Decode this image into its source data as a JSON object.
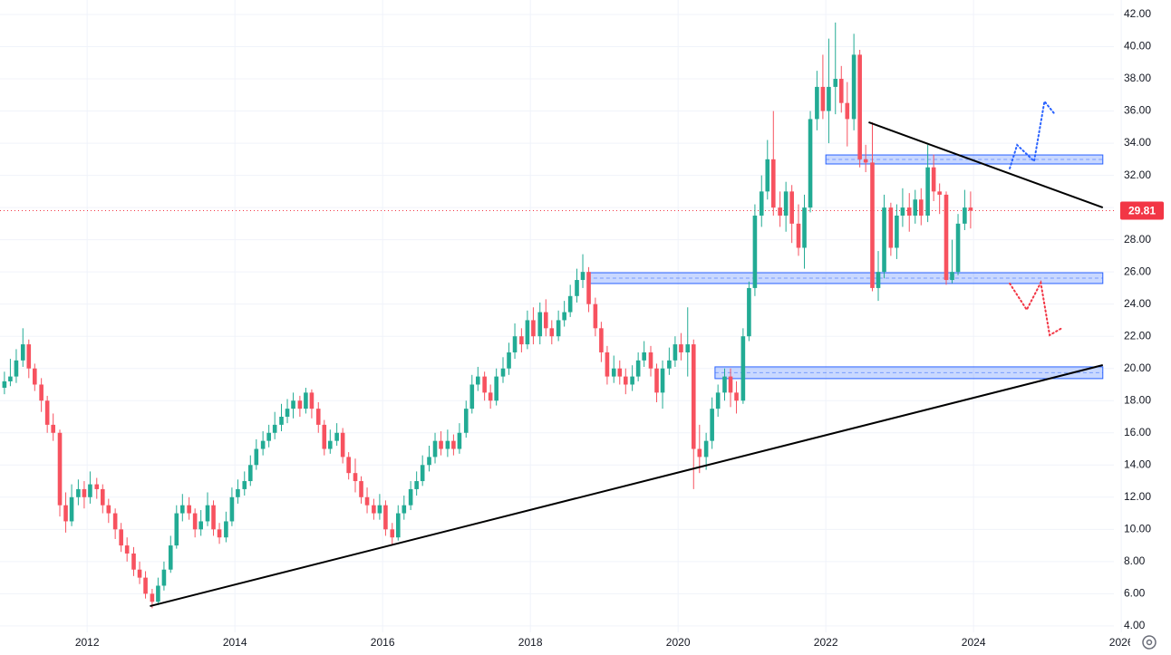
{
  "chart_data": {
    "type": "candlestick",
    "up_color": "#22ab94",
    "down_color": "#f7525f",
    "grid": true,
    "xlim": [
      2010.82,
      2025.9
    ],
    "ylim": [
      3.6,
      42.9
    ],
    "xticks": [
      2012,
      2014,
      2016,
      2018,
      2020,
      2022,
      2024,
      2026
    ],
    "yticks": [
      {
        "value": 4,
        "label": "4.00"
      },
      {
        "value": 6,
        "label": "6.00"
      },
      {
        "value": 8,
        "label": "8.00"
      },
      {
        "value": 10,
        "label": "10.00"
      },
      {
        "value": 12,
        "label": "12.00"
      },
      {
        "value": 14,
        "label": "14.00"
      },
      {
        "value": 16,
        "label": "16.00"
      },
      {
        "value": 18,
        "label": "18.00"
      },
      {
        "value": 20,
        "label": "20.00"
      },
      {
        "value": 22,
        "label": "22.00"
      },
      {
        "value": 24,
        "label": "24.00"
      },
      {
        "value": 26,
        "label": "26.00"
      },
      {
        "value": 28,
        "label": "28.00"
      },
      {
        "value": 30,
        "label": "30.00"
      },
      {
        "value": 32,
        "label": "32.00"
      },
      {
        "value": 34,
        "label": "34.00"
      },
      {
        "value": 36,
        "label": "36.00"
      },
      {
        "value": 38,
        "label": "38.00"
      },
      {
        "value": 40,
        "label": "40.00"
      },
      {
        "value": 42,
        "label": "42.00"
      }
    ],
    "x": [
      2010.88,
      2010.96,
      2011.04,
      2011.13,
      2011.21,
      2011.29,
      2011.38,
      2011.46,
      2011.54,
      2011.63,
      2011.71,
      2011.79,
      2011.88,
      2011.96,
      2012.04,
      2012.13,
      2012.21,
      2012.29,
      2012.38,
      2012.46,
      2012.54,
      2012.63,
      2012.71,
      2012.79,
      2012.88,
      2012.96,
      2013.04,
      2013.13,
      2013.21,
      2013.29,
      2013.38,
      2013.46,
      2013.54,
      2013.63,
      2013.71,
      2013.79,
      2013.88,
      2013.96,
      2014.04,
      2014.13,
      2014.21,
      2014.29,
      2014.38,
      2014.46,
      2014.54,
      2014.63,
      2014.71,
      2014.79,
      2014.88,
      2014.96,
      2015.04,
      2015.13,
      2015.21,
      2015.29,
      2015.38,
      2015.46,
      2015.54,
      2015.63,
      2015.71,
      2015.79,
      2015.88,
      2015.96,
      2016.04,
      2016.13,
      2016.21,
      2016.29,
      2016.38,
      2016.46,
      2016.54,
      2016.63,
      2016.71,
      2016.79,
      2016.88,
      2016.96,
      2017.04,
      2017.13,
      2017.21,
      2017.29,
      2017.38,
      2017.46,
      2017.54,
      2017.63,
      2017.71,
      2017.79,
      2017.88,
      2017.96,
      2018.04,
      2018.13,
      2018.21,
      2018.29,
      2018.38,
      2018.46,
      2018.54,
      2018.63,
      2018.71,
      2018.79,
      2018.88,
      2018.96,
      2019.04,
      2019.13,
      2019.21,
      2019.29,
      2019.38,
      2019.46,
      2019.54,
      2019.63,
      2019.71,
      2019.79,
      2019.88,
      2019.96,
      2020.04,
      2020.13,
      2020.21,
      2020.29,
      2020.38,
      2020.46,
      2020.54,
      2020.63,
      2020.71,
      2020.79,
      2020.88,
      2020.96,
      2021.04,
      2021.13,
      2021.21,
      2021.29,
      2021.38,
      2021.46,
      2021.54,
      2021.63,
      2021.71,
      2021.79,
      2021.88,
      2021.96,
      2022.04,
      2022.13,
      2022.21,
      2022.29,
      2022.38,
      2022.46,
      2022.54,
      2022.63,
      2022.71,
      2022.79,
      2022.88,
      2022.96,
      2023.04,
      2023.13,
      2023.21,
      2023.29,
      2023.38,
      2023.46,
      2023.54,
      2023.63,
      2023.71,
      2023.79,
      2023.88,
      2023.96
    ],
    "open": [
      18.8,
      19.2,
      19.5,
      20.5,
      21.5,
      20,
      19,
      18,
      16.5,
      16,
      11.5,
      10.5,
      12,
      12.5,
      12,
      12.8,
      12.5,
      11.5,
      11,
      10,
      9,
      8.5,
      7.5,
      7,
      6,
      5.5,
      6.5,
      7.5,
      9,
      11,
      11.5,
      11,
      10,
      10.5,
      11.5,
      10,
      9.5,
      10.5,
      12,
      12.5,
      13,
      14,
      15,
      15.5,
      16,
      16.5,
      17,
      17.5,
      18,
      17.5,
      18.5,
      17.5,
      16.5,
      15,
      15.5,
      16,
      14.5,
      13.5,
      13,
      12,
      11.5,
      11,
      11.5,
      10,
      9.5,
      11,
      11.5,
      12.5,
      13,
      14,
      14.5,
      15.5,
      15,
      15.5,
      15,
      16,
      17.5,
      19,
      19.5,
      18.5,
      18,
      19.5,
      20,
      21,
      22,
      21.5,
      23,
      22,
      23.5,
      22.5,
      22,
      23,
      23.5,
      24.5,
      25.5,
      26,
      24,
      22.5,
      21,
      19.5,
      20,
      19.5,
      19,
      19.5,
      20.5,
      21,
      20,
      18.5,
      20,
      20.5,
      21.5,
      21,
      21.5,
      15,
      14.5,
      15.5,
      17.5,
      18.5,
      19.5,
      18.5,
      18,
      22,
      25,
      29.5,
      31,
      33,
      30,
      29.5,
      31,
      29,
      27.5,
      30,
      35.5,
      37.5,
      36,
      37.5,
      38,
      36.5,
      35.5,
      39.5,
      33,
      32.8,
      25,
      26,
      30,
      27.5,
      29.5,
      30,
      29.5,
      30.5,
      29.5,
      32.5,
      31,
      30.8,
      25.5,
      26,
      29,
      30
    ],
    "high": [
      19.8,
      20.6,
      21.2,
      22.5,
      21.8,
      20.3,
      19.4,
      18.3,
      17.2,
      16.2,
      12.3,
      12.8,
      13.1,
      13,
      13.6,
      13.2,
      12.8,
      11.9,
      11.3,
      10.4,
      9.5,
      8.9,
      8,
      7.4,
      6.3,
      7,
      8,
      9.6,
      11.5,
      12.2,
      12,
      11.3,
      11.2,
      12.3,
      11.8,
      10.4,
      11.1,
      12.6,
      13.1,
      13.6,
      14.6,
      15.6,
      16.1,
      16.5,
      17.3,
      17.8,
      18.1,
      18.5,
      18.3,
      18.8,
      18.7,
      17.9,
      16.8,
      16.2,
      16.6,
      16.3,
      14.8,
      14.4,
      13.3,
      12.6,
      11.9,
      12.2,
      11.8,
      10.4,
      11.5,
      12.1,
      13,
      13.6,
      14.6,
      15.2,
      16,
      16.1,
      16.2,
      15.9,
      16.6,
      18,
      19.6,
      20.1,
      19.8,
      19,
      20,
      20.7,
      21.6,
      22.8,
      22.5,
      23.6,
      23.8,
      24.1,
      24.3,
      23,
      23.6,
      24.2,
      25.2,
      26.2,
      27.1,
      26.3,
      24.4,
      22.9,
      21.4,
      20.8,
      20.5,
      20,
      20.2,
      21,
      21.7,
      21.4,
      20.3,
      20.5,
      21.3,
      22,
      22.2,
      23.8,
      21.8,
      16.5,
      16,
      18.2,
      19,
      20,
      20,
      19.2,
      22.5,
      25.4,
      30.2,
      32,
      34.2,
      36,
      31,
      31.6,
      31.4,
      30.2,
      30.8,
      36,
      38.5,
      39.5,
      40.5,
      41.5,
      38.8,
      37.8,
      40.8,
      39.8,
      33.9,
      35.3,
      27.3,
      30.8,
      30.3,
      30.2,
      31.2,
      30.9,
      31.1,
      31.2,
      33.9,
      33.3,
      31.5,
      31,
      28,
      29.6,
      31.1,
      31
    ],
    "low": [
      18.4,
      18.9,
      19.1,
      20.1,
      19.4,
      18.6,
      17.3,
      16,
      15.5,
      10.8,
      9.8,
      10.2,
      11.5,
      11.3,
      11.6,
      11.9,
      11,
      10.4,
      9.4,
      8.6,
      8,
      7.1,
      6.6,
      5.7,
      5.1,
      5.3,
      6.2,
      7.3,
      8.8,
      10.5,
      10.6,
      9.5,
      9.6,
      10.2,
      9.6,
      9.1,
      9.2,
      10.2,
      11.6,
      12.1,
      12.7,
      13.7,
      14.6,
      15.1,
      15.6,
      16.1,
      16.6,
      16.9,
      17,
      17.2,
      16.9,
      16,
      14.6,
      14.7,
      15.2,
      14.1,
      13.1,
      12.3,
      11.6,
      11,
      10.6,
      10.6,
      9.6,
      9,
      9.3,
      10.6,
      11.2,
      12.1,
      12.7,
      13.6,
      14.1,
      14.6,
      14.5,
      14.6,
      14.7,
      15.7,
      17.2,
      18.6,
      18,
      17.5,
      17.7,
      19.1,
      19.6,
      20.6,
      21,
      21.2,
      21.5,
      21.5,
      22,
      21.5,
      21.7,
      22.6,
      23.2,
      24.1,
      25,
      23.5,
      22,
      20.4,
      19,
      19.1,
      19,
      18.4,
      18.6,
      19.2,
      20.1,
      19.5,
      17.9,
      17.5,
      19.6,
      20.1,
      20.5,
      19.5,
      12.5,
      13.5,
      13.7,
      15,
      17,
      18,
      17.6,
      17.2,
      17.8,
      21.7,
      24.5,
      28.8,
      30.5,
      29.5,
      28.8,
      28.5,
      27.8,
      27,
      26.2,
      29.7,
      34.8,
      35.5,
      34,
      35.8,
      35.9,
      33.8,
      34.8,
      32.5,
      32.2,
      24.8,
      24.2,
      25.6,
      27,
      26.8,
      28.8,
      28.5,
      29,
      28.9,
      29.1,
      30.4,
      29.6,
      25.2,
      25.3,
      25.8,
      28.6,
      28.7
    ],
    "close": [
      19.2,
      19.5,
      20.5,
      21.5,
      20,
      19,
      18,
      16.5,
      16,
      11.5,
      10.5,
      12,
      12.5,
      12,
      12.8,
      12.5,
      11.5,
      11,
      10,
      9,
      8.5,
      7.5,
      7,
      6,
      5.5,
      6.5,
      7.5,
      9,
      11,
      11.5,
      11,
      10,
      10.5,
      11.5,
      10,
      9.5,
      10.5,
      12,
      12.5,
      13,
      14,
      15,
      15.5,
      16,
      16.5,
      17,
      17.5,
      18,
      17.5,
      18.5,
      17.5,
      16.5,
      15,
      15.5,
      16,
      14.5,
      13.5,
      13,
      12,
      11.5,
      11,
      11.5,
      10,
      9.5,
      11,
      11.5,
      12.5,
      13,
      14,
      14.5,
      15.5,
      15,
      15.5,
      15,
      16,
      17.5,
      19,
      19.5,
      18.5,
      18,
      19.5,
      20,
      21,
      22,
      21.5,
      23,
      22,
      23.5,
      22.5,
      22,
      23,
      23.5,
      24.5,
      25.5,
      26,
      24,
      22.5,
      21,
      19.5,
      20,
      19.5,
      19,
      19.5,
      20.5,
      21,
      20,
      18.5,
      20,
      20.5,
      21.5,
      21,
      21.5,
      15,
      14.5,
      15.5,
      17.5,
      18.5,
      19.5,
      18.5,
      18,
      22,
      25,
      29.5,
      31,
      33,
      30,
      29.5,
      31,
      29,
      27.5,
      30,
      35.5,
      37.5,
      36,
      37.5,
      38,
      36.5,
      35.5,
      39.5,
      33,
      32.8,
      25,
      26,
      30,
      27.5,
      29.5,
      30,
      29.5,
      30.5,
      29.5,
      32.5,
      31,
      30.8,
      25.5,
      26,
      29,
      30,
      29.81
    ],
    "last_price": 29.81,
    "last_price_color": "#f23645",
    "zones": [
      {
        "x": [
          2022.0,
          2025.75
        ],
        "y": [
          32.71,
          33.27
        ],
        "color": "#2962ff"
      },
      {
        "x": [
          2018.77,
          2025.75
        ],
        "y": [
          25.28,
          25.95
        ],
        "color": "#2962ff"
      },
      {
        "x": [
          2020.5,
          2025.75
        ],
        "y": [
          19.37,
          20.1
        ],
        "color": "#2962ff"
      }
    ],
    "trend_lines": [
      {
        "x": [
          2012.85,
          2025.75
        ],
        "y": [
          5.23,
          20.21
        ],
        "color": "#000000"
      },
      {
        "x": [
          2022.58,
          2025.75
        ],
        "y": [
          35.3,
          30.0
        ],
        "color": "#000000"
      }
    ],
    "projections": [
      {
        "x": [
          2024.49,
          2024.59,
          2024.82,
          2024.96,
          2025.09
        ],
        "y": [
          32.43,
          33.89,
          32.88,
          36.6,
          35.86
        ],
        "color": "#2962ff"
      },
      {
        "x": [
          2024.49,
          2024.72,
          2024.91,
          2025.03,
          2025.2
        ],
        "y": [
          25.28,
          23.65,
          25.33,
          22.07,
          22.52
        ],
        "color": "#f23645"
      }
    ]
  }
}
